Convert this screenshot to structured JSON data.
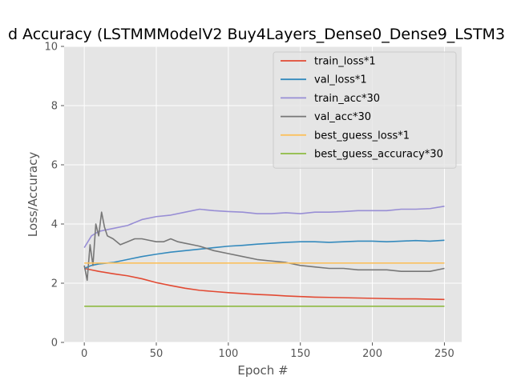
{
  "chart_data": {
    "type": "line",
    "title": "d Accuracy (LSTMMModelV2 Buy4Layers_Dense0_Dense9_LSTM3",
    "xlabel": "Epoch #",
    "ylabel": "Loss/Accuracy",
    "xlim": [
      -14,
      262
    ],
    "ylim": [
      0,
      10
    ],
    "xticks": [
      0,
      50,
      100,
      150,
      200,
      250
    ],
    "yticks": [
      0,
      2,
      4,
      6,
      8,
      10
    ],
    "grid": true,
    "legend_position": "top-right",
    "series": [
      {
        "name": "train_loss*1",
        "color": "#E24A33",
        "points": [
          [
            0,
            2.5
          ],
          [
            5,
            2.45
          ],
          [
            10,
            2.4
          ],
          [
            20,
            2.32
          ],
          [
            30,
            2.25
          ],
          [
            40,
            2.15
          ],
          [
            50,
            2.02
          ],
          [
            60,
            1.92
          ],
          [
            70,
            1.83
          ],
          [
            80,
            1.76
          ],
          [
            90,
            1.72
          ],
          [
            100,
            1.68
          ],
          [
            110,
            1.65
          ],
          [
            120,
            1.62
          ],
          [
            130,
            1.6
          ],
          [
            140,
            1.57
          ],
          [
            150,
            1.55
          ],
          [
            160,
            1.53
          ],
          [
            170,
            1.52
          ],
          [
            180,
            1.51
          ],
          [
            190,
            1.5
          ],
          [
            200,
            1.49
          ],
          [
            210,
            1.48
          ],
          [
            220,
            1.47
          ],
          [
            230,
            1.47
          ],
          [
            240,
            1.46
          ],
          [
            250,
            1.45
          ]
        ]
      },
      {
        "name": "val_loss*1",
        "color": "#348ABD",
        "points": [
          [
            0,
            2.5
          ],
          [
            5,
            2.6
          ],
          [
            10,
            2.65
          ],
          [
            20,
            2.7
          ],
          [
            30,
            2.8
          ],
          [
            40,
            2.9
          ],
          [
            50,
            2.98
          ],
          [
            60,
            3.05
          ],
          [
            70,
            3.1
          ],
          [
            80,
            3.15
          ],
          [
            90,
            3.2
          ],
          [
            100,
            3.25
          ],
          [
            110,
            3.28
          ],
          [
            120,
            3.32
          ],
          [
            130,
            3.35
          ],
          [
            140,
            3.38
          ],
          [
            150,
            3.4
          ],
          [
            160,
            3.4
          ],
          [
            170,
            3.38
          ],
          [
            180,
            3.4
          ],
          [
            190,
            3.42
          ],
          [
            200,
            3.42
          ],
          [
            210,
            3.4
          ],
          [
            220,
            3.42
          ],
          [
            230,
            3.44
          ],
          [
            240,
            3.42
          ],
          [
            250,
            3.45
          ]
        ]
      },
      {
        "name": "train_acc*30",
        "color": "#988ED5",
        "points": [
          [
            0,
            3.2
          ],
          [
            5,
            3.6
          ],
          [
            10,
            3.75
          ],
          [
            20,
            3.85
          ],
          [
            30,
            3.95
          ],
          [
            40,
            4.15
          ],
          [
            50,
            4.25
          ],
          [
            60,
            4.3
          ],
          [
            70,
            4.4
          ],
          [
            80,
            4.5
          ],
          [
            90,
            4.45
          ],
          [
            100,
            4.42
          ],
          [
            110,
            4.4
          ],
          [
            120,
            4.35
          ],
          [
            130,
            4.35
          ],
          [
            140,
            4.38
          ],
          [
            150,
            4.35
          ],
          [
            160,
            4.4
          ],
          [
            170,
            4.4
          ],
          [
            180,
            4.42
          ],
          [
            190,
            4.45
          ],
          [
            200,
            4.45
          ],
          [
            210,
            4.45
          ],
          [
            220,
            4.5
          ],
          [
            230,
            4.5
          ],
          [
            240,
            4.52
          ],
          [
            250,
            4.6
          ]
        ]
      },
      {
        "name": "val_acc*30",
        "color": "#777777",
        "points": [
          [
            0,
            2.6
          ],
          [
            2,
            2.1
          ],
          [
            4,
            3.3
          ],
          [
            6,
            2.6
          ],
          [
            8,
            4.0
          ],
          [
            10,
            3.6
          ],
          [
            12,
            4.4
          ],
          [
            14,
            3.9
          ],
          [
            16,
            3.6
          ],
          [
            20,
            3.5
          ],
          [
            25,
            3.3
          ],
          [
            30,
            3.4
          ],
          [
            35,
            3.5
          ],
          [
            40,
            3.5
          ],
          [
            45,
            3.45
          ],
          [
            50,
            3.4
          ],
          [
            55,
            3.4
          ],
          [
            60,
            3.5
          ],
          [
            65,
            3.4
          ],
          [
            70,
            3.35
          ],
          [
            75,
            3.3
          ],
          [
            80,
            3.25
          ],
          [
            90,
            3.1
          ],
          [
            100,
            3.0
          ],
          [
            110,
            2.9
          ],
          [
            120,
            2.8
          ],
          [
            130,
            2.75
          ],
          [
            140,
            2.7
          ],
          [
            150,
            2.6
          ],
          [
            160,
            2.55
          ],
          [
            170,
            2.5
          ],
          [
            180,
            2.5
          ],
          [
            190,
            2.45
          ],
          [
            200,
            2.45
          ],
          [
            210,
            2.45
          ],
          [
            220,
            2.4
          ],
          [
            230,
            2.4
          ],
          [
            240,
            2.4
          ],
          [
            250,
            2.5
          ]
        ]
      },
      {
        "name": "best_guess_loss*1",
        "color": "#FBC15E",
        "points": [
          [
            0,
            2.68
          ],
          [
            250,
            2.68
          ]
        ]
      },
      {
        "name": "best_guess_accuracy*30",
        "color": "#8EBA42",
        "points": [
          [
            0,
            1.22
          ],
          [
            250,
            1.22
          ]
        ]
      }
    ]
  }
}
